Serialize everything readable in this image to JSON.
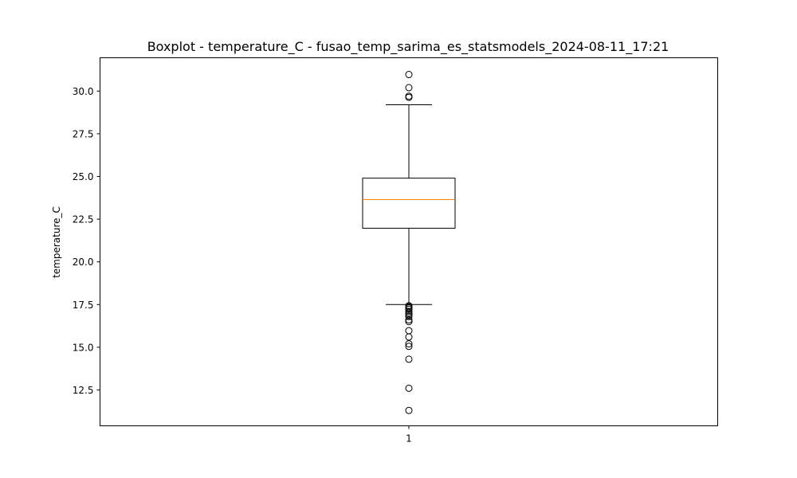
{
  "chart_data": {
    "type": "boxplot",
    "title": "Boxplot - temperature_C - fusao_temp_sarima_es_statsmodels_2024-08-11_17:21",
    "xlabel": "",
    "ylabel": "temperature_C",
    "categories": [
      "1"
    ],
    "ylim": [
      10.4,
      31.95
    ],
    "yticks": [
      12.5,
      15.0,
      17.5,
      20.0,
      22.5,
      25.0,
      27.5,
      30.0
    ],
    "ytick_labels": [
      "12.5",
      "15.0",
      "17.5",
      "20.0",
      "22.5",
      "25.0",
      "27.5",
      "30.0"
    ],
    "box": {
      "whisker_low": 17.5,
      "q1": 21.97,
      "median": 23.65,
      "q3": 24.9,
      "whisker_high": 29.2
    },
    "outliers": [
      30.97,
      30.2,
      29.7,
      29.63,
      17.43,
      17.38,
      17.3,
      17.22,
      17.1,
      17.0,
      16.9,
      16.8,
      16.6,
      16.5,
      15.97,
      15.6,
      15.2,
      15.05,
      14.3,
      12.6,
      11.3
    ],
    "colors": {
      "median": "#ff7f0e",
      "box": "#000000",
      "background": "#ffffff"
    }
  }
}
